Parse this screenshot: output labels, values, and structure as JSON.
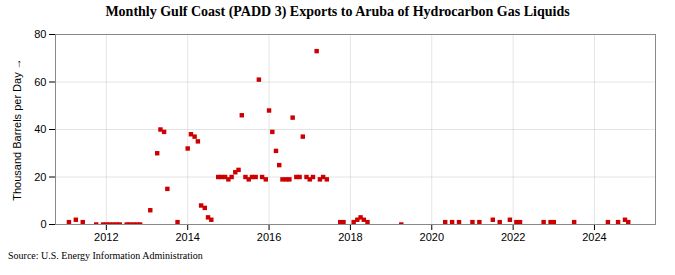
{
  "chart_data": {
    "type": "scatter",
    "title": "Monthly Gulf Coast (PADD 3) Exports to Aruba of Hydrocarbon Gas Liquids",
    "ylabel": "Thousand Barrels per Day",
    "source": "Source: U.S. Energy Information Administration",
    "color": "#cc0000",
    "marker": "square",
    "xlim": [
      2010.75,
      2025.5
    ],
    "xticks": [
      2012,
      2014,
      2016,
      2018,
      2020,
      2022,
      2024
    ],
    "ylim": [
      0,
      80
    ],
    "yticks": [
      0,
      20,
      40,
      60,
      80
    ],
    "grid": true,
    "x": [
      2011.08,
      2011.25,
      2011.42,
      2011.75,
      2011.92,
      2012.0,
      2012.08,
      2012.17,
      2012.25,
      2012.33,
      2012.5,
      2012.58,
      2012.67,
      2012.75,
      2012.83,
      2013.08,
      2013.25,
      2013.33,
      2013.42,
      2013.5,
      2013.75,
      2014.0,
      2014.08,
      2014.17,
      2014.25,
      2014.33,
      2014.42,
      2014.5,
      2014.58,
      2014.75,
      2014.83,
      2014.92,
      2015.0,
      2015.08,
      2015.17,
      2015.25,
      2015.33,
      2015.42,
      2015.5,
      2015.58,
      2015.67,
      2015.75,
      2015.83,
      2015.92,
      2016.0,
      2016.08,
      2016.17,
      2016.25,
      2016.33,
      2016.42,
      2016.5,
      2016.58,
      2016.67,
      2016.75,
      2016.83,
      2016.92,
      2017.0,
      2017.08,
      2017.17,
      2017.25,
      2017.33,
      2017.42,
      2017.75,
      2017.83,
      2018.08,
      2018.17,
      2018.25,
      2018.33,
      2018.42,
      2019.25,
      2020.33,
      2020.5,
      2020.67,
      2021.0,
      2021.17,
      2021.5,
      2021.67,
      2021.92,
      2022.08,
      2022.17,
      2022.75,
      2022.92,
      2023.0,
      2023.5,
      2024.33,
      2024.58,
      2024.75,
      2024.83
    ],
    "values": [
      1,
      2,
      1,
      0,
      0,
      0,
      0,
      0,
      0,
      0,
      0,
      0,
      0,
      0,
      0,
      6,
      30,
      40,
      39,
      15,
      1,
      32,
      38,
      37,
      35,
      8,
      7,
      3,
      2,
      20,
      20,
      20,
      19,
      20,
      22,
      23,
      46,
      20,
      19,
      20,
      20,
      61,
      20,
      19,
      48,
      39,
      31,
      25,
      19,
      19,
      19,
      45,
      20,
      20,
      37,
      20,
      19,
      20,
      73,
      19,
      20,
      19,
      1,
      1,
      1,
      2,
      3,
      2,
      1,
      0,
      1,
      1,
      1,
      1,
      1,
      2,
      1,
      2,
      1,
      1,
      1,
      1,
      1,
      1,
      1,
      1,
      2,
      1
    ]
  }
}
